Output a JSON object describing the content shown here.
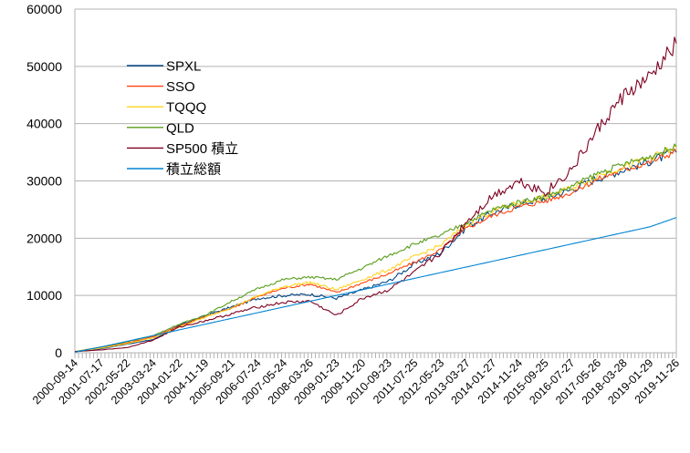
{
  "chart_data": {
    "type": "line",
    "title": "",
    "xlabel": "",
    "ylabel": "",
    "ylim": [
      0,
      60000
    ],
    "yticks": [
      0,
      10000,
      20000,
      30000,
      40000,
      50000,
      60000
    ],
    "grid": "horizontal",
    "legend_position": "upper-left, inside plot",
    "x": [
      "2000-09-14",
      "2001-07-17",
      "2002-05-22",
      "2003-03-24",
      "2004-01-22",
      "2004-11-19",
      "2005-09-21",
      "2006-07-24",
      "2007-05-24",
      "2008-03-26",
      "2009-01-23",
      "2009-11-20",
      "2010-09-23",
      "2011-07-25",
      "2012-05-23",
      "2013-03-27",
      "2014-01-27",
      "2014-11-24",
      "2015-09-25",
      "2016-07-27",
      "2017-05-26",
      "2018-03-28",
      "2019-01-29",
      "2019-11-26"
    ],
    "series": [
      {
        "name": "SPXL",
        "color": "#004586",
        "values": [
          200,
          700,
          1500,
          2300,
          4800,
          6500,
          8000,
          9500,
          10000,
          10200,
          9500,
          11000,
          12500,
          15500,
          17500,
          22000,
          24500,
          26000,
          27000,
          28500,
          30500,
          32000,
          33500,
          35000
        ]
      },
      {
        "name": "SSO",
        "color": "#ff420e",
        "values": [
          200,
          900,
          1700,
          2800,
          4700,
          6300,
          7800,
          9800,
          11300,
          12000,
          10500,
          12200,
          13800,
          15800,
          18000,
          21800,
          24000,
          25500,
          26500,
          28000,
          30300,
          32000,
          33300,
          35200
        ]
      },
      {
        "name": "TQQQ",
        "color": "#ffd320",
        "values": [
          200,
          800,
          1600,
          2600,
          4500,
          6200,
          7900,
          9900,
          11600,
          12300,
          11000,
          12800,
          14500,
          16800,
          18800,
          22500,
          24800,
          26200,
          27200,
          28800,
          31000,
          32500,
          34000,
          35800
        ]
      },
      {
        "name": "QLD",
        "color": "#579d1c",
        "values": [
          200,
          1000,
          1900,
          3000,
          5000,
          6600,
          9000,
          11200,
          12800,
          13200,
          12800,
          14800,
          17000,
          19000,
          20500,
          22800,
          25000,
          26300,
          27300,
          29000,
          31300,
          32900,
          34300,
          36000
        ]
      },
      {
        "name": "SP500 積立",
        "color": "#7e0021",
        "values": [
          200,
          500,
          900,
          2200,
          4500,
          5600,
          6800,
          8000,
          8800,
          9000,
          6500,
          9500,
          11000,
          14000,
          17500,
          23000,
          27500,
          30000,
          28000,
          32000,
          39000,
          45000,
          48000,
          54000
        ]
      },
      {
        "name": "積立総額",
        "color": "#0084d1",
        "values": [
          100,
          1000,
          2000,
          3000,
          4000,
          5000,
          6000,
          7000,
          8000,
          9000,
          10000,
          11000,
          12000,
          13000,
          14000,
          15000,
          16000,
          17000,
          18000,
          19000,
          20000,
          21000,
          22000,
          23600
        ]
      }
    ]
  }
}
